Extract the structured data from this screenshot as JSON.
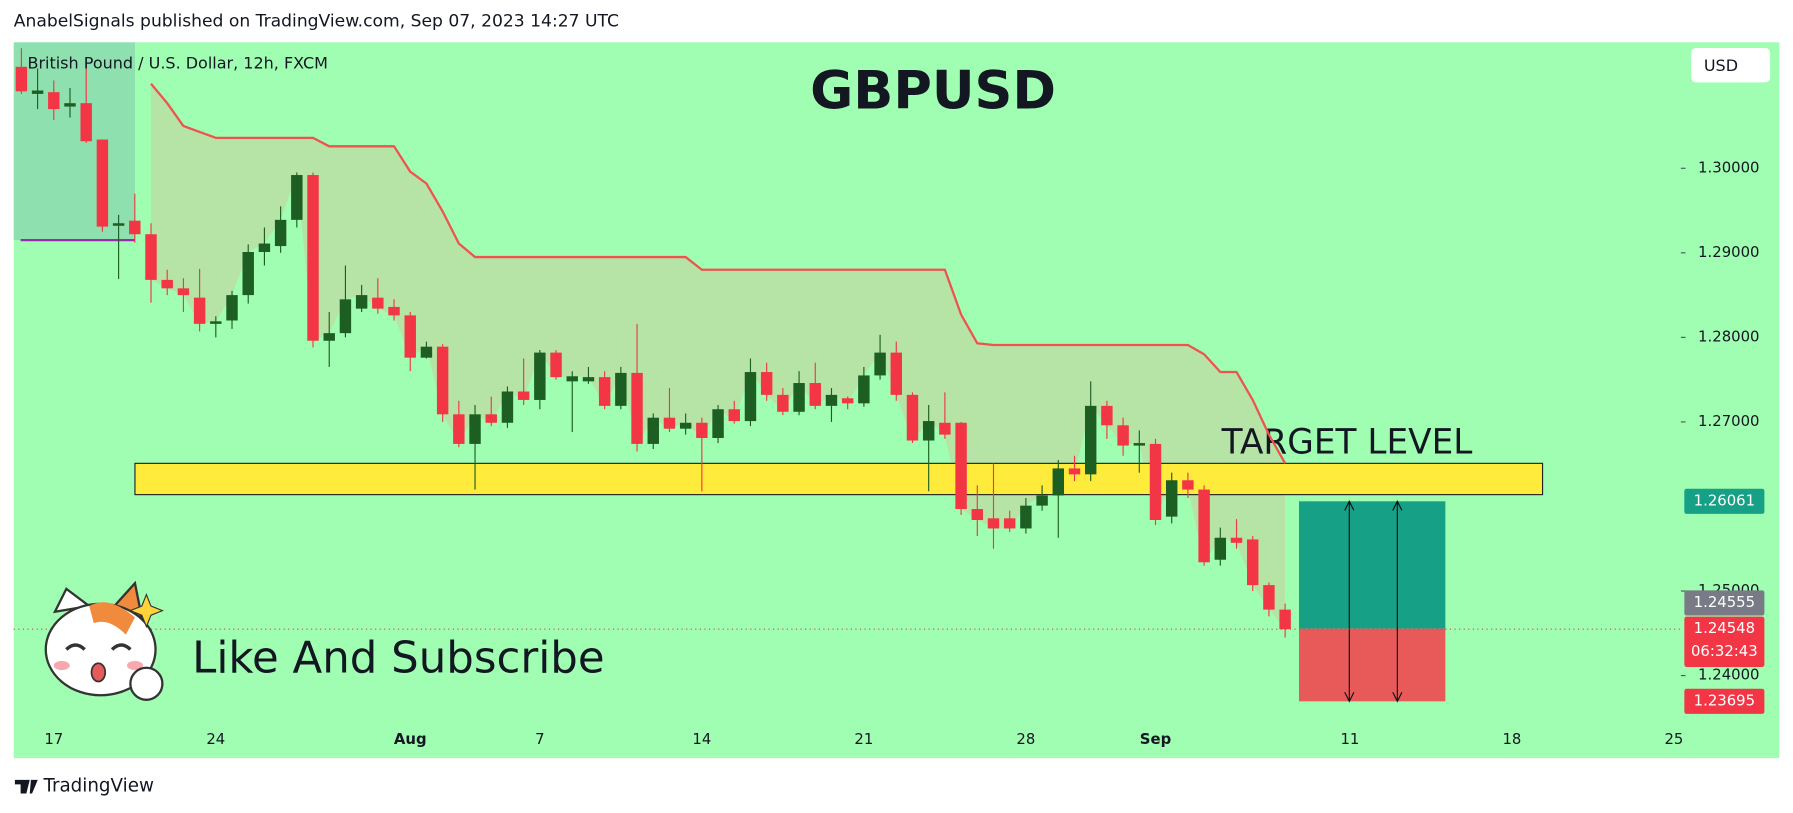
{
  "chart_data": {
    "type": "candlestick",
    "header": "AnabelSignals published on TradingView.com, Sep 07, 2023 14:27 UTC",
    "symbol": "British Pound / U.S. Dollar, 12h, FXCM",
    "title": "GBPUSD",
    "currency": "USD",
    "overlay_text": "Like And Subscribe",
    "footer": "TradingView",
    "up_color": "#1d5e22",
    "down_color": "#f23645",
    "categories": [
      null,
      null,
      "17",
      null,
      null,
      null,
      null,
      null,
      null,
      null,
      null,
      null,
      "24",
      null,
      null,
      null,
      null,
      null,
      null,
      null,
      null,
      null,
      null,
      null,
      "Aug",
      null,
      null,
      null,
      null,
      null,
      null,
      null,
      "7",
      null,
      null,
      null,
      null,
      null,
      null,
      null,
      null,
      null,
      "14",
      null,
      null,
      null,
      null,
      null,
      null,
      null,
      null,
      null,
      "21",
      null,
      null,
      null,
      null,
      null,
      null,
      null,
      null,
      null,
      "28",
      null,
      null,
      null,
      null,
      null,
      null,
      null,
      "Sep",
      null,
      null,
      null,
      null,
      null,
      null,
      null,
      null,
      null,
      null,
      null,
      "11",
      null,
      null,
      null,
      null,
      null,
      null,
      null,
      null,
      null,
      "18",
      null,
      null,
      null,
      null,
      null,
      null,
      null,
      null,
      null,
      "25"
    ],
    "open": [
      1.312,
      1.3088,
      1.309,
      1.3073,
      1.3077,
      1.3034,
      1.2932,
      1.2938,
      1.2922,
      1.2868,
      1.2858,
      1.2847,
      1.2816,
      1.282,
      1.285,
      1.2901,
      1.2908,
      1.2939,
      1.2992,
      1.2796,
      1.2805,
      1.2834,
      1.2847,
      1.2836,
      1.2826,
      1.2776,
      1.2789,
      1.2709,
      1.2674,
      1.2709,
      1.2699,
      1.2736,
      1.2726,
      1.2782,
      1.2748,
      1.2748,
      1.2753,
      1.2719,
      1.2758,
      1.2674,
      1.2705,
      1.2692,
      1.2699,
      1.2681,
      1.2715,
      1.2701,
      1.2759,
      1.2732,
      1.2712,
      1.2746,
      1.2719,
      1.2728,
      1.2722,
      1.2755,
      1.2782,
      1.2732,
      1.2678,
      1.2699,
      1.2699,
      1.2597,
      1.2586,
      1.2586,
      1.2574,
      1.2601,
      1.2613,
      1.2645,
      1.2638,
      1.2719,
      1.2696,
      1.2672,
      1.2674,
      1.2588,
      1.2631,
      1.262,
      1.2537,
      1.2563,
      1.2561,
      1.2507,
      1.2478,
      null,
      null,
      null,
      null,
      null,
      null,
      null,
      null,
      null,
      null,
      null,
      null,
      null,
      null,
      null,
      null,
      null,
      null,
      null,
      null,
      null,
      null,
      null,
      null
    ],
    "high": [
      1.3142,
      1.3118,
      1.3104,
      1.3095,
      1.3124,
      1.3034,
      1.2945,
      1.297,
      1.2935,
      1.288,
      1.287,
      1.2881,
      1.2825,
      1.2855,
      1.291,
      1.293,
      1.2955,
      1.2995,
      1.2995,
      1.283,
      1.2885,
      1.2862,
      1.287,
      1.2845,
      1.283,
      1.2795,
      1.2792,
      1.2725,
      1.272,
      1.273,
      1.2742,
      1.2775,
      1.2785,
      1.2785,
      1.276,
      1.2765,
      1.276,
      1.2765,
      1.2816,
      1.271,
      1.274,
      1.271,
      1.2705,
      1.272,
      1.2725,
      1.2775,
      1.277,
      1.274,
      1.276,
      1.277,
      1.274,
      1.273,
      1.2765,
      1.2803,
      1.2795,
      1.2735,
      1.272,
      1.2735,
      1.27,
      1.2625,
      1.2651,
      1.2595,
      1.261,
      1.2625,
      1.2655,
      1.266,
      1.2748,
      1.2725,
      1.2705,
      1.269,
      1.268,
      1.264,
      1.264,
      1.2625,
      1.2575,
      1.2585,
      1.2565,
      1.251,
      1.2485,
      null,
      null,
      null,
      null,
      null,
      null,
      null,
      null,
      null,
      null,
      null,
      null,
      null,
      null,
      null,
      null,
      null,
      null,
      null,
      null,
      null,
      null,
      null,
      null
    ],
    "low": [
      1.3088,
      1.307,
      1.3057,
      1.306,
      1.303,
      1.2925,
      1.2869,
      1.2912,
      1.2841,
      1.285,
      1.283,
      1.2807,
      1.28,
      1.281,
      1.284,
      1.2885,
      1.29,
      1.293,
      1.2788,
      1.2765,
      1.28,
      1.283,
      1.2828,
      1.282,
      1.276,
      1.2775,
      1.27,
      1.267,
      1.262,
      1.2695,
      1.2693,
      1.272,
      1.2715,
      1.275,
      1.2688,
      1.2745,
      1.2715,
      1.2715,
      1.2665,
      1.2668,
      1.2688,
      1.2685,
      1.2618,
      1.2675,
      1.2698,
      1.2695,
      1.2725,
      1.2708,
      1.2708,
      1.2715,
      1.27,
      1.2715,
      1.2718,
      1.275,
      1.2725,
      1.2675,
      1.2618,
      1.268,
      1.259,
      1.2565,
      1.255,
      1.257,
      1.2568,
      1.2595,
      1.2563,
      1.263,
      1.263,
      1.268,
      1.266,
      1.264,
      1.2578,
      1.258,
      1.261,
      1.253,
      1.253,
      1.255,
      1.25,
      1.247,
      1.2445,
      null,
      null,
      null,
      null,
      null,
      null,
      null,
      null,
      null,
      null,
      null,
      null,
      null,
      null,
      null,
      null,
      null,
      null,
      null,
      null,
      null,
      null,
      null,
      null
    ],
    "close": [
      1.3091,
      1.3092,
      1.307,
      1.3077,
      1.3032,
      1.2931,
      1.2935,
      1.2922,
      1.2868,
      1.2858,
      1.285,
      1.2816,
      1.2819,
      1.285,
      1.2901,
      1.2911,
      1.2939,
      1.2992,
      1.2796,
      1.2805,
      1.2845,
      1.285,
      1.2834,
      1.2826,
      1.2776,
      1.2789,
      1.2709,
      1.2674,
      1.2709,
      1.2699,
      1.2736,
      1.2726,
      1.2782,
      1.2753,
      1.2754,
      1.2753,
      1.2719,
      1.2758,
      1.2674,
      1.2705,
      1.2692,
      1.2699,
      1.2681,
      1.2715,
      1.2701,
      1.2759,
      1.2732,
      1.2712,
      1.2746,
      1.2719,
      1.2732,
      1.2722,
      1.2755,
      1.2782,
      1.2732,
      1.2678,
      1.2701,
      1.2685,
      1.2597,
      1.2584,
      1.2574,
      1.2574,
      1.2601,
      1.2613,
      1.2645,
      1.2638,
      1.2719,
      1.2696,
      1.2672,
      1.2675,
      1.2584,
      1.2631,
      1.262,
      1.2534,
      1.2563,
      1.2557,
      1.2507,
      1.2478,
      1.24548,
      null,
      null,
      null,
      null,
      null,
      null,
      null,
      null,
      null,
      null,
      null,
      null,
      null,
      null,
      null,
      null,
      null,
      null,
      null,
      null,
      null,
      null,
      null,
      null
    ],
    "line": {
      "color": "#ef5350",
      "values": [
        null,
        null,
        null,
        null,
        null,
        null,
        null,
        null,
        1.31,
        1.3077,
        1.305,
        1.3043,
        1.3036,
        1.3036,
        1.3036,
        1.3036,
        1.3036,
        1.3036,
        1.3036,
        1.3026,
        1.3026,
        1.3026,
        1.3026,
        1.3026,
        1.2996,
        1.2982,
        1.2949,
        1.2911,
        1.2895,
        1.2895,
        1.2895,
        1.2895,
        1.2895,
        1.2895,
        1.2895,
        1.2895,
        1.2895,
        1.2895,
        1.2895,
        1.2895,
        1.2895,
        1.2895,
        1.288,
        1.288,
        1.288,
        1.288,
        1.288,
        1.288,
        1.288,
        1.288,
        1.288,
        1.288,
        1.288,
        1.288,
        1.288,
        1.288,
        1.288,
        1.288,
        1.2827,
        1.2793,
        1.2791,
        1.2791,
        1.2791,
        1.2791,
        1.2791,
        1.2791,
        1.2791,
        1.2791,
        1.2791,
        1.2791,
        1.2791,
        1.2791,
        1.2791,
        1.278,
        1.2759,
        1.2759,
        1.2726,
        1.2685,
        1.2651,
        null,
        null,
        null,
        null,
        null,
        null,
        null,
        null,
        null,
        null,
        null,
        null,
        null,
        null,
        null,
        null,
        null,
        null,
        null,
        null,
        null,
        null,
        null,
        null
      ]
    },
    "target_zone": {
      "label": "TARGET LEVEL",
      "top": 1.2651,
      "bottom": 1.2614,
      "color": "#ffeb3b"
    },
    "position": {
      "target": 1.26061,
      "entry": 1.24555,
      "stop": 1.23695,
      "profit_color": "#16a085",
      "loss_color": "#e85a5a"
    },
    "last_price": 1.24548,
    "countdown": "06:32:43",
    "ylim": [
      1.2347,
      1.3149
    ],
    "yticks": [
      {
        "value": 1.3,
        "label": "1.30000"
      },
      {
        "value": 1.29,
        "label": "1.29000"
      },
      {
        "value": 1.28,
        "label": "1.28000"
      },
      {
        "value": 1.27,
        "label": "1.27000"
      },
      {
        "value": 1.25,
        "label": "1.25000"
      },
      {
        "value": 1.24,
        "label": "1.24000"
      }
    ],
    "grid": false
  }
}
